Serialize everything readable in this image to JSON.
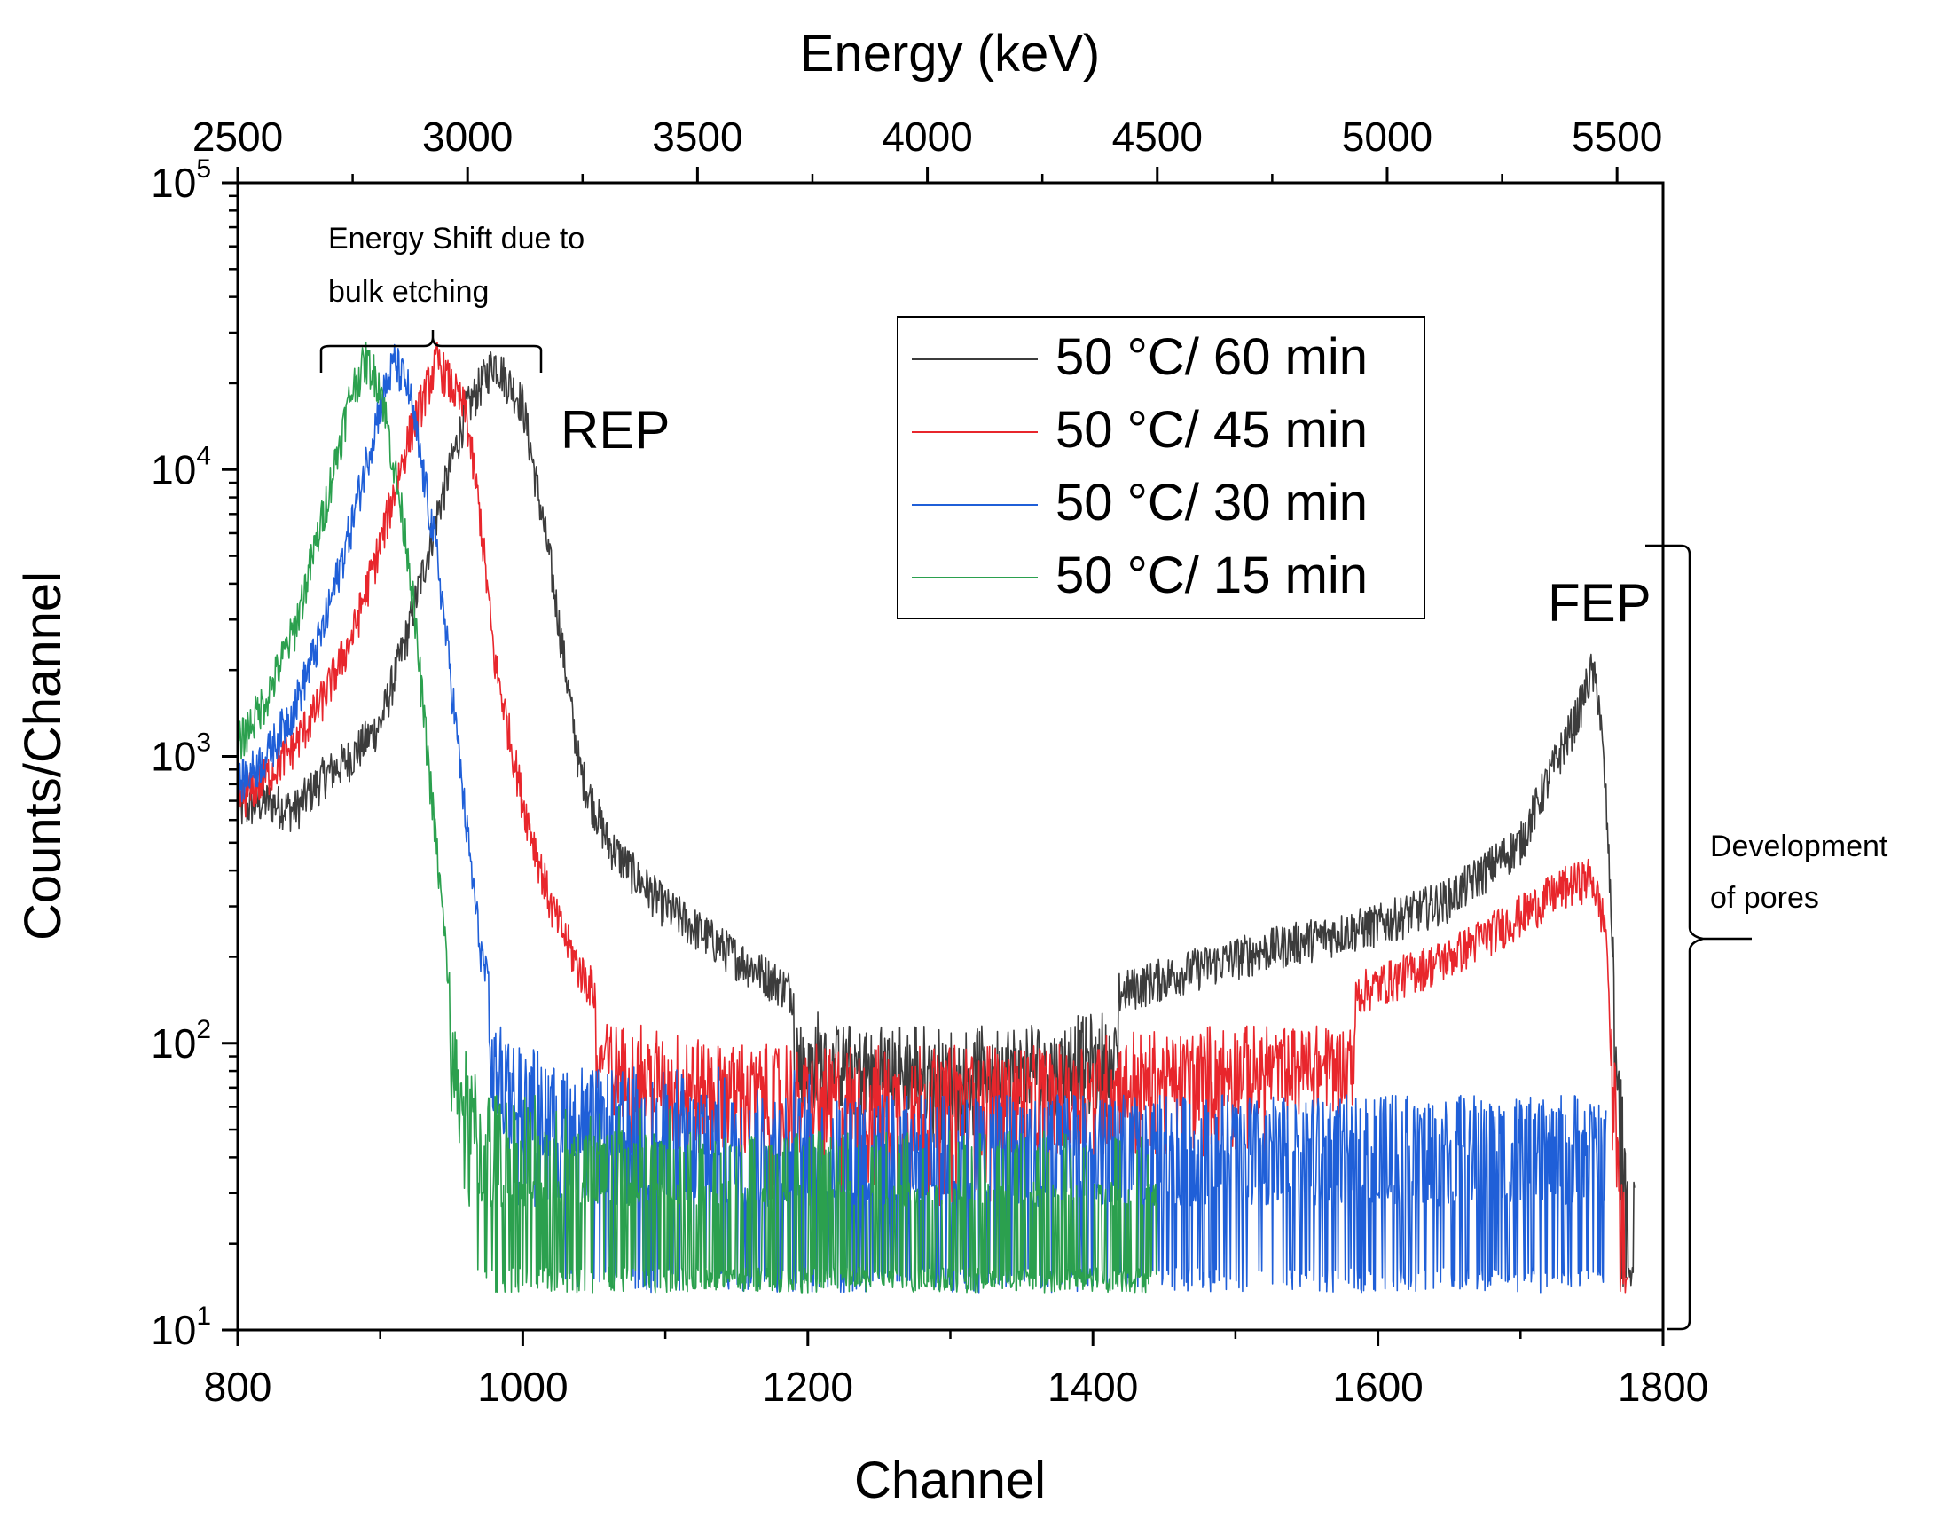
{
  "chart_data": {
    "type": "line",
    "title": "",
    "xlabel": "Channel",
    "ylabel": "Counts/Channel",
    "x2label": "Energy (keV)",
    "xlim": [
      800,
      1800
    ],
    "ylim": [
      10,
      100000
    ],
    "yscale": "log",
    "x2lim": [
      2500,
      5600
    ],
    "x_ticks": [
      "800",
      "1000",
      "1200",
      "1400",
      "1600",
      "1800"
    ],
    "x2_ticks": [
      "2500",
      "3000",
      "3500",
      "4000",
      "4500",
      "5000",
      "5500"
    ],
    "y_ticks": [
      {
        "base": "10",
        "exp": "1",
        "value": 10
      },
      {
        "base": "10",
        "exp": "2",
        "value": 100
      },
      {
        "base": "10",
        "exp": "3",
        "value": 1000
      },
      {
        "base": "10",
        "exp": "4",
        "value": 10000
      },
      {
        "base": "10",
        "exp": "5",
        "value": 100000
      }
    ],
    "series": [
      {
        "name": "50 °C/ 60 min",
        "color": "#3c3c3c",
        "x": [
          800,
          820,
          840,
          860,
          880,
          900,
          920,
          940,
          960,
          980,
          1000,
          1020,
          1040,
          1060,
          1080,
          1100,
          1150,
          1200,
          1250,
          1300,
          1350,
          1400,
          1450,
          1500,
          1550,
          1600,
          1650,
          1700,
          1720,
          1740,
          1750,
          1755,
          1760,
          1765,
          1770,
          1775,
          1780
        ],
        "y": [
          650,
          700,
          650,
          850,
          1000,
          1300,
          2800,
          7000,
          16000,
          24000,
          17000,
          4500,
          900,
          500,
          380,
          300,
          200,
          140,
          110,
          110,
          120,
          140,
          170,
          200,
          230,
          260,
          320,
          500,
          850,
          1400,
          2000,
          1600,
          700,
          200,
          40,
          12,
          10
        ]
      },
      {
        "name": "50 °C/ 45 min",
        "color": "#e8262c",
        "x": [
          800,
          820,
          840,
          860,
          880,
          900,
          920,
          940,
          960,
          970,
          980,
          1000,
          1020,
          1040,
          1060,
          1080,
          1100,
          1150,
          1200,
          1250,
          1300,
          1350,
          1400,
          1450,
          1500,
          1550,
          1600,
          1650,
          1700,
          1730,
          1750,
          1760,
          1765,
          1770,
          1775
        ],
        "y": [
          700,
          850,
          1100,
          1600,
          2600,
          5500,
          13000,
          24000,
          16000,
          7000,
          2200,
          700,
          300,
          180,
          130,
          110,
          95,
          80,
          65,
          60,
          65,
          70,
          80,
          95,
          110,
          130,
          160,
          200,
          280,
          350,
          380,
          250,
          80,
          25,
          15
        ]
      },
      {
        "name": "50 °C/ 30 min",
        "color": "#1f5fd8",
        "x": [
          800,
          820,
          840,
          860,
          880,
          900,
          910,
          920,
          940,
          950,
          960,
          970,
          980,
          1000,
          1050,
          1100,
          1200,
          1300,
          1400,
          1500,
          1600,
          1700,
          1760
        ],
        "y": [
          800,
          1000,
          1500,
          2800,
          6500,
          17000,
          24000,
          19000,
          5000,
          1800,
          600,
          220,
          120,
          60,
          40,
          35,
          32,
          30,
          30,
          30,
          30,
          30,
          30
        ]
      },
      {
        "name": "50 °C/ 15 min",
        "color": "#2ba04e",
        "x": [
          800,
          820,
          840,
          860,
          880,
          890,
          900,
          920,
          930,
          940,
          950,
          960,
          970,
          1000,
          1050,
          1100,
          1150,
          1200,
          1300,
          1445
        ],
        "y": [
          1100,
          1600,
          2800,
          7000,
          19000,
          24000,
          20000,
          5000,
          1500,
          450,
          130,
          55,
          35,
          25,
          22,
          20,
          18,
          16,
          15,
          15
        ]
      }
    ],
    "annotations": {
      "shift_line1": "Energy Shift due to",
      "shift_line2": "bulk etching",
      "rep": "REP",
      "fep": "FEP",
      "pores_line1": "Development",
      "pores_line2": "of pores"
    },
    "legend_position": "top-center"
  }
}
